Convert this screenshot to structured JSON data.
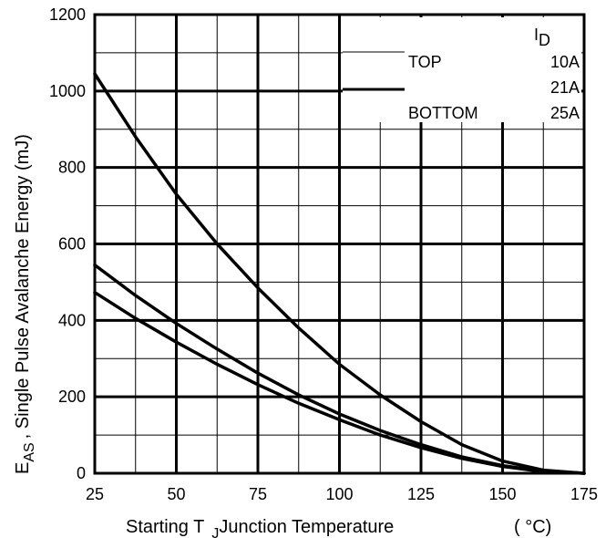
{
  "chart_data": {
    "type": "line",
    "xlabel": {
      "main": "Starting T",
      "sub": "J",
      "rest": "Junction Temperature",
      "unit": "( °C)"
    },
    "ylabel": {
      "main": "E",
      "sub": "AS",
      "rest": ", Single Pulse Avalanche Energy (mJ)"
    },
    "xlim": [
      25,
      175
    ],
    "ylim": [
      0,
      1200
    ],
    "x_ticks": [
      25,
      50,
      75,
      100,
      125,
      150,
      175
    ],
    "y_ticks": [
      0,
      200,
      400,
      600,
      800,
      1000,
      1200
    ],
    "grid": true,
    "legend": {
      "placement": "top-right",
      "header": {
        "main": "I",
        "sub": "D"
      },
      "rows": [
        {
          "label": "TOP",
          "value": "10A"
        },
        {
          "label": "",
          "value": "21A"
        },
        {
          "label": "BOTTOM",
          "value": "25A"
        }
      ]
    },
    "series": [
      {
        "name": "10A",
        "x": [
          25,
          37.5,
          50,
          62.5,
          75,
          87.5,
          100,
          112.5,
          125,
          137.5,
          150,
          162.5,
          175
        ],
        "y": [
          1045,
          880,
          730,
          600,
          485,
          380,
          285,
          205,
          135,
          75,
          32,
          8,
          0
        ]
      },
      {
        "name": "21A",
        "x": [
          25,
          37.5,
          50,
          62.5,
          75,
          87.5,
          100,
          112.5,
          125,
          137.5,
          150,
          162.5,
          175
        ],
        "y": [
          545,
          465,
          392,
          325,
          262,
          205,
          155,
          112,
          75,
          43,
          20,
          5,
          0
        ]
      },
      {
        "name": "25A",
        "x": [
          25,
          37.5,
          50,
          62.5,
          75,
          87.5,
          100,
          112.5,
          125,
          137.5,
          150,
          162.5,
          175
        ],
        "y": [
          473,
          405,
          343,
          285,
          232,
          183,
          140,
          100,
          67,
          39,
          18,
          4,
          0
        ]
      }
    ]
  }
}
